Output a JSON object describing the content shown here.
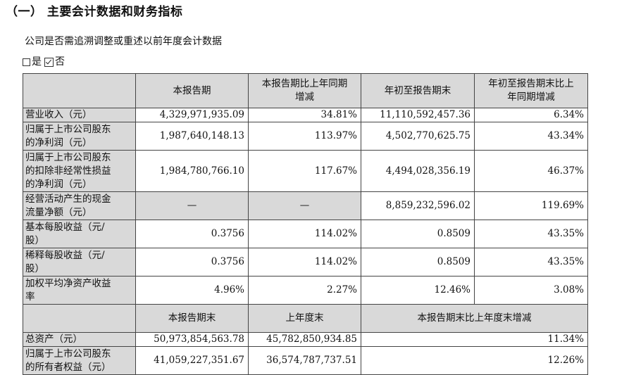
{
  "section_title": "（一） 主要会计数据和财务指标",
  "restatement_question": "公司是否需追溯调整或重述以前年度会计数据",
  "restatement_answer": {
    "yes_label": "是",
    "no_label": "否",
    "yes_checked": false,
    "no_checked": true
  },
  "table1": {
    "headers": [
      "",
      "本报告期",
      "本报告期比上年同期增减",
      "年初至报告期末",
      "年初至报告期末比上年同期增减"
    ],
    "header_lines": {
      "h2": [
        "本报告期比上年同期",
        "增减"
      ],
      "h4": [
        "年初至报告期末比上",
        "年同期增减"
      ]
    },
    "rows": [
      {
        "label": "营业收入（元）",
        "label_lines": [
          "营业收入（元）"
        ],
        "c1": "4,329,971,935.09",
        "c2": "34.81%",
        "c3": "11,110,592,457.36",
        "c4": "6.34%"
      },
      {
        "label": "归属于上市公司股东的净利润（元）",
        "label_lines": [
          "归属于上市公司股东",
          "的净利润（元）"
        ],
        "c1": "1,987,640,148.13",
        "c2": "113.97%",
        "c3": "4,502,770,625.75",
        "c4": "43.34%"
      },
      {
        "label": "归属于上市公司股东的扣除非经常性损益的净利润（元）",
        "label_lines": [
          "归属于上市公司股东",
          "的扣除非经常性损益",
          "的净利润（元）"
        ],
        "c1": "1,984,780,766.10",
        "c2": "117.67%",
        "c3": "4,494,028,356.19",
        "c4": "46.37%"
      },
      {
        "label": "经营活动产生的现金流量净额（元）",
        "label_lines": [
          "经营活动产生的现金",
          "流量净额（元）"
        ],
        "c1": "—",
        "c2": "—",
        "c3": "8,859,232,596.02",
        "c4": "119.69%"
      },
      {
        "label": "基本每股收益（元/股）",
        "label_lines": [
          "基本每股收益（元/",
          "股）"
        ],
        "c1": "0.3756",
        "c2": "114.02%",
        "c3": "0.8509",
        "c4": "43.35%"
      },
      {
        "label": "稀释每股收益（元/股）",
        "label_lines": [
          "稀释每股收益（元/",
          "股）"
        ],
        "c1": "0.3756",
        "c2": "114.02%",
        "c3": "0.8509",
        "c4": "43.35%"
      },
      {
        "label": "加权平均净资产收益率",
        "label_lines": [
          "加权平均净资产收益",
          "率"
        ],
        "c1": "4.96%",
        "c2": "2.27%",
        "c3": "12.46%",
        "c4": "3.08%"
      }
    ]
  },
  "table2": {
    "headers": [
      "",
      "本报告期末",
      "上年度末",
      "本报告期末比上年度末增减"
    ],
    "rows": [
      {
        "label": "总资产（元）",
        "label_lines": [
          "总资产（元）"
        ],
        "c1": "50,973,854,563.78",
        "c2": "45,782,850,934.85",
        "c3": "11.34%"
      },
      {
        "label": "归属于上市公司股东的所有者权益（元）",
        "label_lines": [
          "归属于上市公司股东",
          "的所有者权益（元）"
        ],
        "c1": "41,059,227,351.67",
        "c2": "36,574,787,737.51",
        "c3": "12.26%"
      }
    ]
  }
}
